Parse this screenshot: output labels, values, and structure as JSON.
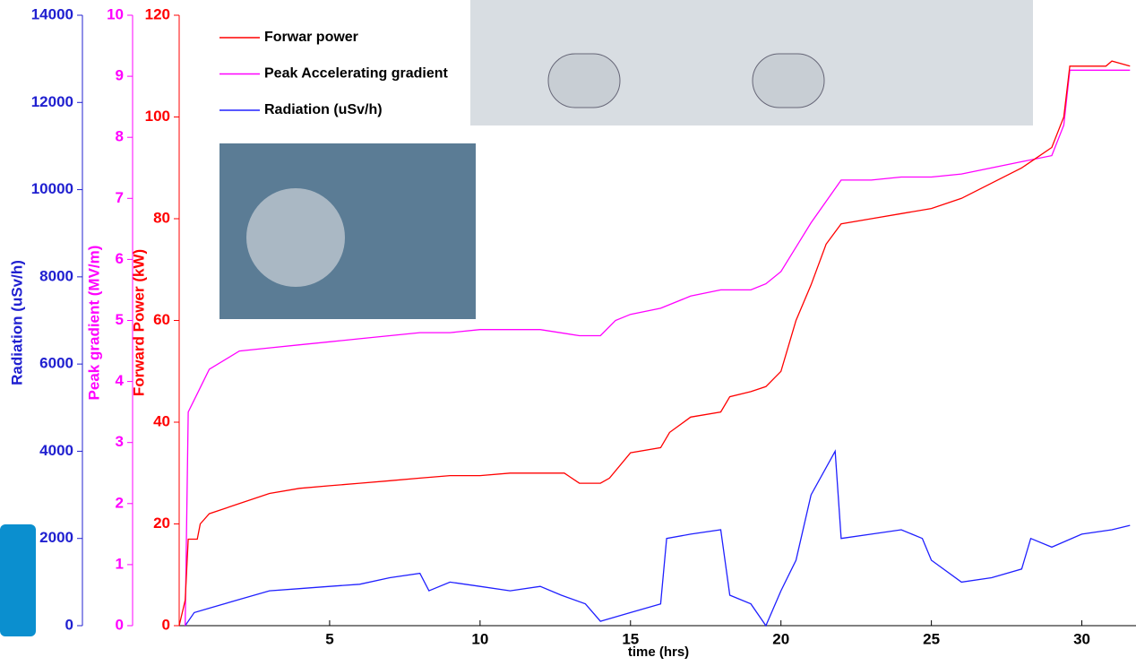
{
  "chart_data": {
    "type": "line",
    "xlabel": "time (hrs)",
    "ylabel": "Forward Power (kW)",
    "y2label": "Peak gradient (MV/m)",
    "y3label": "Radiation (uSv/h)",
    "xlim": [
      0,
      31.8
    ],
    "xticks": [
      5,
      10,
      15,
      20,
      25,
      30
    ],
    "ylim": [
      0,
      120
    ],
    "yticks": [
      0,
      20,
      40,
      60,
      80,
      100,
      120
    ],
    "y2lim": [
      0,
      10
    ],
    "y2ticks": [
      0,
      1,
      2,
      3,
      4,
      5,
      6,
      7,
      8,
      9,
      10
    ],
    "y3lim": [
      0,
      14000
    ],
    "y3ticks": [
      0,
      2000,
      4000,
      6000,
      8000,
      10000,
      12000,
      14000
    ],
    "series": [
      {
        "name": "Forwar power",
        "color": "#ff0000",
        "axis": "y",
        "x": [
          0,
          0.2,
          0.3,
          0.6,
          0.7,
          1,
          2,
          3,
          4,
          5,
          6,
          7,
          8,
          9,
          10,
          11,
          12,
          12.8,
          13.3,
          14,
          14.3,
          15,
          16,
          16.3,
          17,
          18,
          18.3,
          19,
          19.5,
          20,
          20.5,
          21,
          21.5,
          22,
          23,
          24,
          25,
          26,
          27,
          28,
          28.5,
          29,
          29.4,
          29.6,
          30,
          30.8,
          31,
          31.6
        ],
        "values": [
          0,
          5,
          17,
          17,
          20,
          22,
          24,
          26,
          27,
          27.5,
          28,
          28.5,
          29,
          29.5,
          29.5,
          30,
          30,
          30,
          28,
          28,
          29,
          34,
          35,
          38,
          41,
          42,
          45,
          46,
          47,
          50,
          60,
          67,
          75,
          79,
          80,
          81,
          82,
          84,
          87,
          90,
          92,
          94,
          100,
          110,
          110,
          110,
          111,
          110
        ]
      },
      {
        "name": "Peak Accelerating gradient",
        "color": "#ff00ff",
        "axis": "y2",
        "x": [
          0.2,
          0.3,
          0.6,
          1,
          2,
          3,
          4,
          5,
          6,
          7,
          8,
          9,
          10,
          12,
          13.3,
          14,
          14.5,
          15,
          16,
          17,
          18,
          19,
          19.5,
          20,
          21,
          22,
          23,
          24,
          25,
          26,
          27,
          28,
          29,
          29.4,
          29.6,
          31.6
        ],
        "values": [
          0,
          3.5,
          3.8,
          4.2,
          4.5,
          4.55,
          4.6,
          4.65,
          4.7,
          4.75,
          4.8,
          4.8,
          4.85,
          4.85,
          4.75,
          4.75,
          5.0,
          5.1,
          5.2,
          5.4,
          5.5,
          5.5,
          5.6,
          5.8,
          6.6,
          7.3,
          7.3,
          7.35,
          7.35,
          7.4,
          7.5,
          7.6,
          7.7,
          8.2,
          9.1,
          9.1
        ]
      },
      {
        "name": "Radiation (uSv/h)",
        "color": "#2020ff",
        "axis": "y3",
        "x": [
          0.2,
          0.5,
          1,
          2,
          3,
          4,
          5,
          6,
          7,
          8,
          8.3,
          9,
          10,
          11,
          12,
          12.7,
          13.5,
          14,
          15,
          16,
          16.2,
          17,
          18,
          18.3,
          19,
          19.5,
          20,
          20.5,
          21,
          21.8,
          22,
          23,
          24,
          24.7,
          25,
          26,
          27,
          28,
          28.3,
          29,
          30,
          31,
          31.6
        ],
        "values": [
          0,
          300,
          400,
          600,
          800,
          850,
          900,
          950,
          1100,
          1200,
          800,
          1000,
          900,
          800,
          900,
          700,
          500,
          100,
          300,
          500,
          2000,
          2100,
          2200,
          700,
          500,
          0,
          800,
          1500,
          3000,
          4000,
          2000,
          2100,
          2200,
          2000,
          1500,
          1000,
          1100,
          1300,
          2000,
          1800,
          2100,
          2200,
          2300
        ]
      }
    ]
  }
}
